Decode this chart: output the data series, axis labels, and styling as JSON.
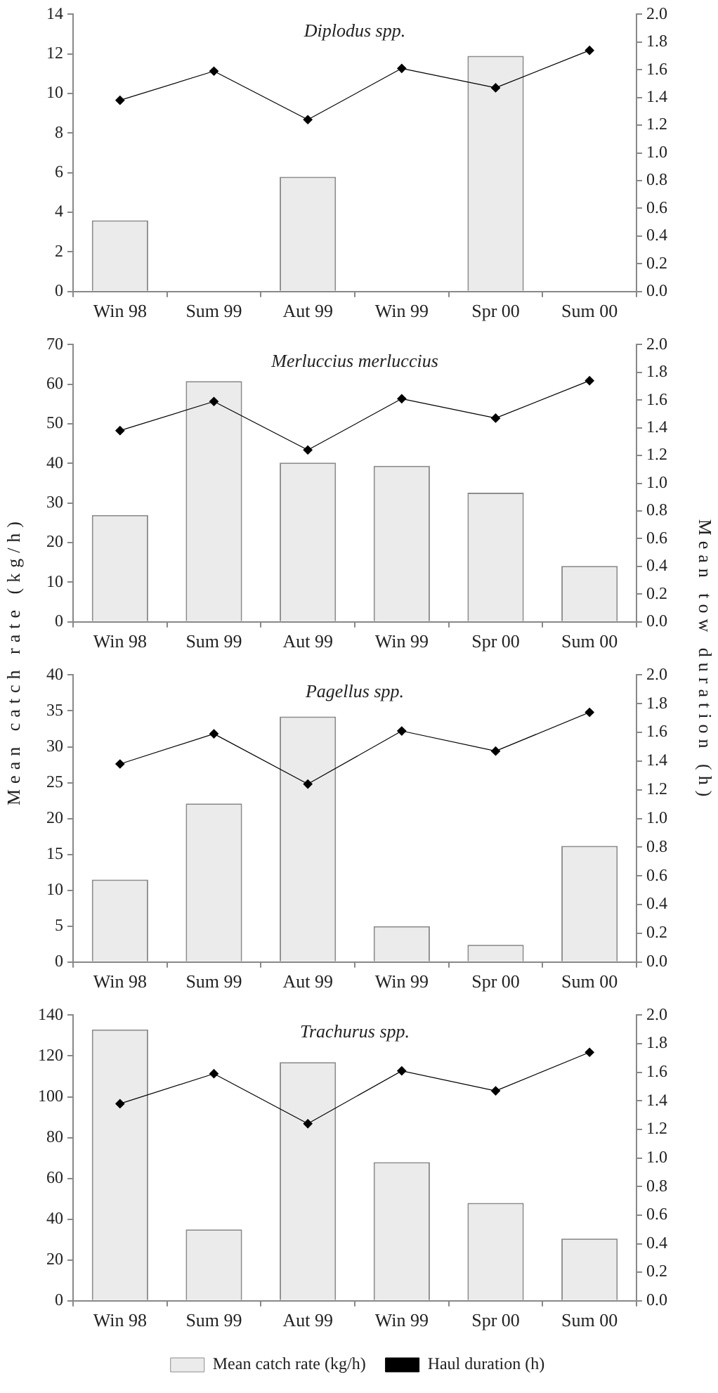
{
  "chart_data": [
    {
      "type": "bar",
      "title": "Diplodus spp.",
      "categories": [
        "Win 98",
        "Sum 99",
        "Aut 99",
        "Win 99",
        "Spr 00",
        "Sum 00"
      ],
      "series": [
        {
          "color": "#ebebeb",
          "values": [
            3.6,
            null,
            5.8,
            null,
            11.9,
            null
          ]
        },
        {
          "type": "line",
          "axis": "y2",
          "color": "#000000",
          "values": [
            1.38,
            1.59,
            1.24,
            1.61,
            1.47,
            1.74
          ]
        }
      ],
      "ylim": [
        0,
        14
      ],
      "yticks": [
        0,
        2,
        4,
        6,
        8,
        10,
        12,
        14
      ],
      "y2lim": [
        0,
        2
      ],
      "y2ticks": [
        {
          "value": 0,
          "label": "0.0"
        },
        0.2,
        0.4,
        0.6,
        0.8,
        {
          "value": 1,
          "label": "1.0"
        },
        1.2,
        1.4,
        1.6,
        1.8,
        {
          "value": 2,
          "label": "2.0"
        }
      ],
      "grid": false,
      "legend": false,
      "marker": "diamond"
    },
    {
      "type": "bar",
      "title": "Merluccius merluccius",
      "ylabel": "Mean catch rate (kg/h)",
      "y2label": "Mean tow duration (h)",
      "categories": [
        "Win 98",
        "Sum 99",
        "Aut 99",
        "Win 99",
        "Spr 00",
        "Sum 00"
      ],
      "series": [
        {
          "color": "#ebebeb",
          "values": [
            27,
            60.8,
            40.2,
            39.4,
            32.6,
            14.1
          ]
        },
        {
          "type": "line",
          "axis": "y2",
          "color": "#000000",
          "values": [
            1.38,
            1.59,
            1.24,
            1.61,
            1.47,
            1.74
          ]
        }
      ],
      "ylim": [
        0,
        70
      ],
      "yticks": [
        0,
        10,
        20,
        30,
        40,
        50,
        60,
        70
      ],
      "y2lim": [
        0,
        2
      ],
      "y2ticks": [
        {
          "value": 0,
          "label": "0.0"
        },
        0.2,
        0.4,
        0.6,
        0.8,
        {
          "value": 1,
          "label": "1.0"
        },
        1.2,
        1.4,
        1.6,
        1.8,
        {
          "value": 2,
          "label": "2.0"
        }
      ],
      "grid": false,
      "legend": false,
      "marker": "diamond"
    },
    {
      "type": "bar",
      "title": "Pagellus spp.",
      "categories": [
        "Win 98",
        "Sum 99",
        "Aut 99",
        "Win 99",
        "Spr 00",
        "Sum 00"
      ],
      "series": [
        {
          "color": "#ebebeb",
          "values": [
            11.5,
            22.1,
            34.2,
            5,
            2.4,
            16.2
          ]
        },
        {
          "type": "line",
          "axis": "y2",
          "color": "#000000",
          "values": [
            1.38,
            1.59,
            1.24,
            1.61,
            1.47,
            1.74
          ]
        }
      ],
      "ylim": [
        0,
        40
      ],
      "yticks": [
        0,
        5,
        10,
        15,
        20,
        25,
        30,
        35,
        40
      ],
      "y2lim": [
        0,
        2
      ],
      "y2ticks": [
        {
          "value": 0,
          "label": "0.0"
        },
        0.2,
        0.4,
        0.6,
        0.8,
        {
          "value": 1,
          "label": "1.0"
        },
        1.2,
        1.4,
        1.6,
        1.8,
        {
          "value": 2,
          "label": "2.0"
        }
      ],
      "grid": false,
      "legend": false,
      "marker": "diamond"
    },
    {
      "type": "bar",
      "title": "Trachurus spp.",
      "categories": [
        "Win 98",
        "Sum 99",
        "Aut 99",
        "Win 99",
        "Spr 00",
        "Sum 00"
      ],
      "series": [
        {
          "name": "Mean catch rate (kg/h)",
          "color": "#ebebeb",
          "values": [
            133,
            35,
            117,
            68,
            48,
            30.5
          ]
        },
        {
          "name": "Haul duration (h)",
          "type": "line",
          "axis": "y2",
          "color": "#000000",
          "values": [
            1.38,
            1.59,
            1.24,
            1.61,
            1.47,
            1.74
          ]
        }
      ],
      "ylim": [
        0,
        140
      ],
      "yticks": [
        0,
        20,
        40,
        60,
        80,
        100,
        120,
        140
      ],
      "y2lim": [
        0,
        2
      ],
      "y2ticks": [
        {
          "value": 0,
          "label": "0.0"
        },
        0.2,
        0.4,
        0.6,
        0.8,
        {
          "value": 1,
          "label": "1.0"
        },
        1.2,
        1.4,
        1.6,
        1.8,
        {
          "value": 2,
          "label": "2.0"
        }
      ],
      "grid": false,
      "legend": "bottom",
      "marker": "diamond"
    }
  ]
}
